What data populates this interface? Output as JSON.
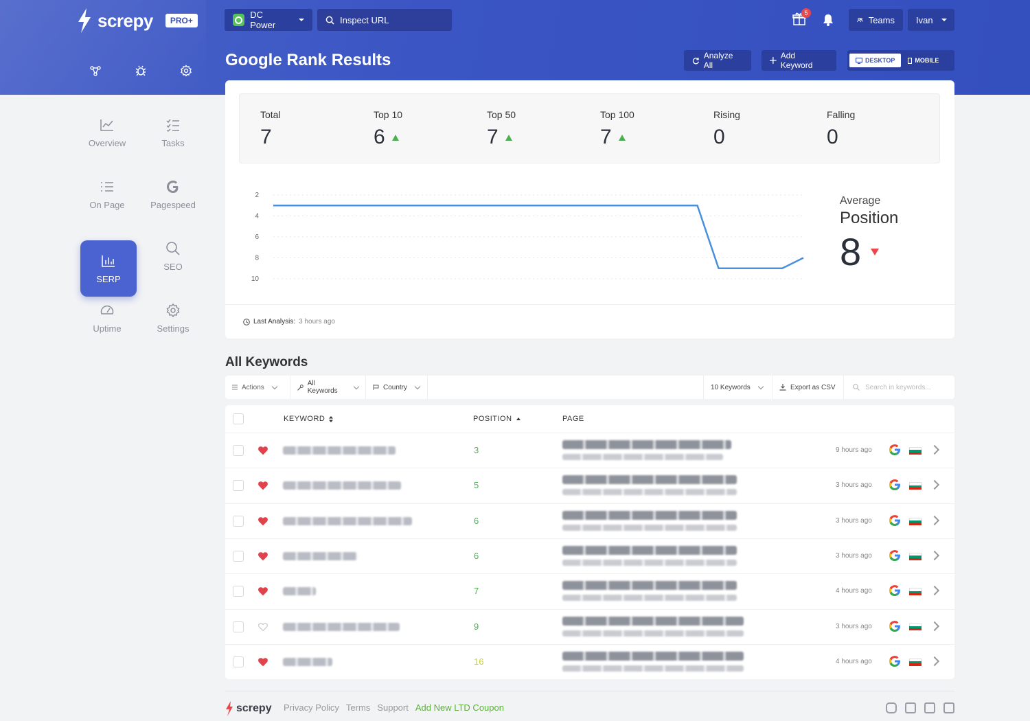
{
  "brand": {
    "name": "screpy",
    "plan": "PRO+"
  },
  "header": {
    "project": "DC Power",
    "inspect_placeholder": "Inspect URL",
    "gift_badge": "5",
    "teams_label": "Teams",
    "user_label": "Ivan"
  },
  "page": {
    "title": "Google Rank Results"
  },
  "actions": {
    "analyze_all": "Analyze All",
    "add_keyword": "Add Keyword",
    "desktop": "DESKTOP",
    "mobile": "MOBILE"
  },
  "sidebar": {
    "items": [
      {
        "label": "Overview",
        "icon": "chart-line-icon"
      },
      {
        "label": "Tasks",
        "icon": "tasks-list-icon"
      },
      {
        "label": "On Page",
        "icon": "list-icon"
      },
      {
        "label": "Pagespeed",
        "icon": "google-g-icon"
      },
      {
        "label": "SERP",
        "icon": "bar-chart-icon",
        "active": true
      },
      {
        "label": "SEO",
        "icon": "search-icon"
      },
      {
        "label": "Uptime",
        "icon": "gauge-icon"
      },
      {
        "label": "Settings",
        "icon": "gear-icon"
      }
    ]
  },
  "stats": [
    {
      "label": "Total",
      "value": "7",
      "trend": "none"
    },
    {
      "label": "Top 10",
      "value": "6",
      "trend": "up"
    },
    {
      "label": "Top 50",
      "value": "7",
      "trend": "up"
    },
    {
      "label": "Top 100",
      "value": "7",
      "trend": "up"
    },
    {
      "label": "Rising",
      "value": "0",
      "trend": "none"
    },
    {
      "label": "Falling",
      "value": "0",
      "trend": "none"
    }
  ],
  "average": {
    "line1": "Average",
    "line2": "Position",
    "value": "8",
    "trend": "down"
  },
  "chart_data": {
    "type": "line",
    "yticks": [
      "2",
      "4",
      "6",
      "8",
      "10"
    ],
    "ylim": [
      2,
      10
    ],
    "y_inverted": true,
    "grid": true,
    "series": [
      {
        "values": [
          3,
          3,
          3,
          3,
          3,
          3,
          3,
          3,
          3,
          3,
          3,
          3,
          3,
          3,
          3,
          3,
          3,
          3,
          3,
          3,
          3,
          9,
          9,
          9,
          9,
          8
        ]
      }
    ]
  },
  "last_analysis": {
    "label": "Last Analysis:",
    "value": "3 hours ago"
  },
  "keywords": {
    "title": "All Keywords",
    "toolbar": {
      "actions": "Actions",
      "all_keywords": "All Keywords",
      "country": "Country",
      "count": "10 Keywords",
      "export": "Export as CSV",
      "search_placeholder": "Search in keywords..."
    },
    "columns": {
      "keyword": "KEYWORD",
      "position": "POSITION",
      "page": "PAGE"
    },
    "rows": [
      {
        "fav": true,
        "position": "3",
        "ago": "9 hours ago"
      },
      {
        "fav": true,
        "position": "5",
        "ago": "3 hours ago"
      },
      {
        "fav": true,
        "position": "6",
        "ago": "3 hours ago"
      },
      {
        "fav": true,
        "position": "6",
        "ago": "3 hours ago"
      },
      {
        "fav": true,
        "position": "7",
        "ago": "4 hours ago"
      },
      {
        "fav": false,
        "position": "9",
        "ago": "3 hours ago"
      },
      {
        "fav": true,
        "position": "16",
        "ago": "4 hours ago"
      }
    ]
  },
  "footer": {
    "brand": "screpy",
    "links": [
      "Privacy Policy",
      "Terms",
      "Support"
    ],
    "promo": "Add New LTD Coupon"
  },
  "colors": {
    "brand_blue": "#3b56c4",
    "accent_green": "#4caf50",
    "accent_red": "#e8474e"
  }
}
